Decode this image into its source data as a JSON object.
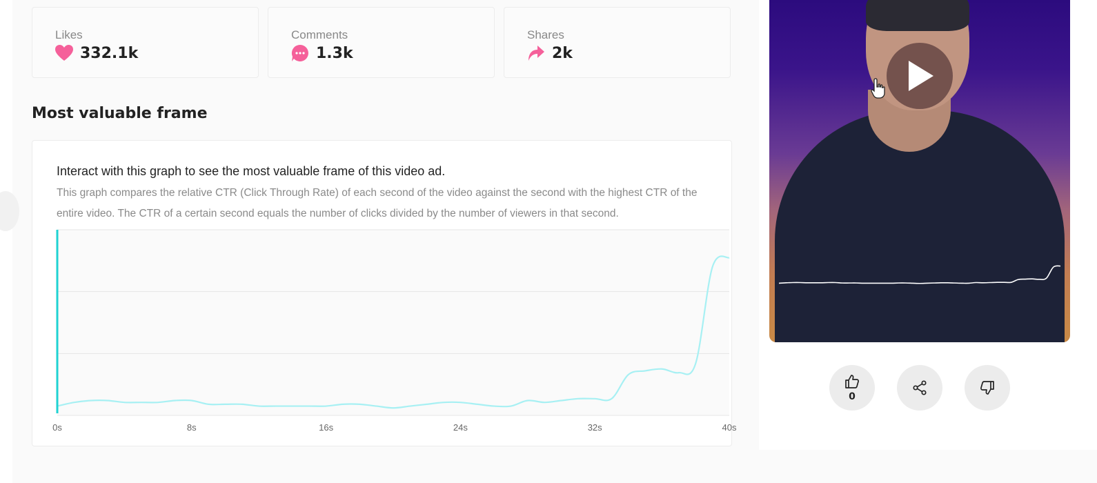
{
  "stats": {
    "likes": {
      "label": "Likes",
      "value": "332.1k"
    },
    "comments": {
      "label": "Comments",
      "value": "1.3k"
    },
    "shares": {
      "label": "Shares",
      "value": "2k"
    }
  },
  "section": {
    "title": "Most valuable frame"
  },
  "graph": {
    "heading": "Interact with this graph to see the most valuable frame of this video ad.",
    "description": "This graph compares the relative CTR (Click Through Rate) of each second of the video against the second with the highest CTR of the entire video. The CTR of a certain second equals the number of clicks divided by the number of viewers in that second."
  },
  "chart_data": {
    "type": "line",
    "x_tick_labels": [
      "0s",
      "8s",
      "16s",
      "24s",
      "32s",
      "40s"
    ],
    "xlim": [
      0,
      40
    ],
    "ylim": [
      0,
      100
    ],
    "grid": true,
    "line_color": "#a7f0f3",
    "marker_color": "#1fd3d3",
    "series": [
      {
        "x": [
          0,
          1,
          2,
          3,
          4,
          5,
          6,
          7,
          8,
          9,
          10,
          11,
          12,
          13,
          14,
          15,
          16,
          17,
          18,
          19,
          20,
          21,
          22,
          23,
          24,
          25,
          26,
          27,
          28,
          29,
          30,
          31,
          32,
          33,
          34,
          35,
          36,
          37,
          38,
          39,
          40
        ],
        "values": [
          5,
          7,
          8,
          8,
          7,
          7,
          7,
          8,
          8,
          6,
          6,
          6,
          5,
          5,
          5,
          5,
          5,
          6,
          6,
          5,
          4,
          5,
          6,
          7,
          7,
          6,
          5,
          5,
          8,
          7,
          8,
          9,
          9,
          9,
          22,
          24,
          25,
          23,
          28,
          80,
          85
        ]
      }
    ],
    "marker_x": 0
  },
  "video": {
    "line_color": "#ffffff"
  },
  "actions": {
    "like_count": "0"
  },
  "colors": {
    "accent_pink": "#f5609a",
    "teal": "#1fd3d3"
  },
  "icons": [
    "heart-icon",
    "comment-icon",
    "share-arrow-icon",
    "play-icon",
    "thumbs-up-icon",
    "share-icon",
    "thumbs-down-icon",
    "hand-cursor-icon"
  ]
}
